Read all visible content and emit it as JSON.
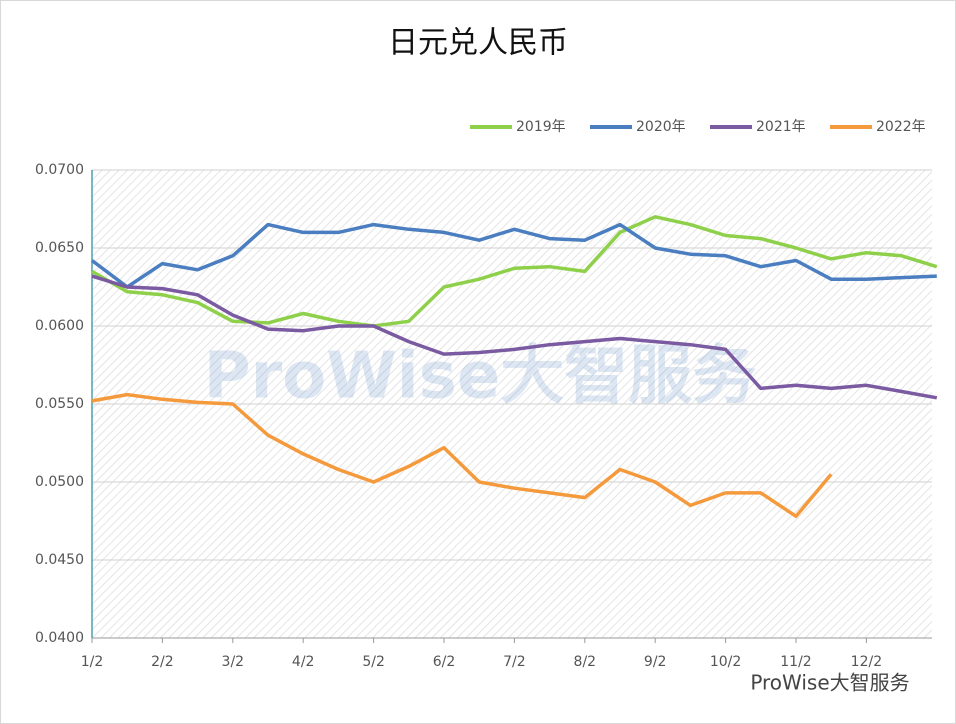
{
  "chart_data": {
    "type": "line",
    "title": "日元兑人民币",
    "watermark": "ProWise大智服务",
    "categories": [
      "1/2",
      null,
      "2/2",
      null,
      "3/2",
      null,
      "4/2",
      null,
      "5/2",
      null,
      "6/2",
      null,
      "7/2",
      null,
      "8/2",
      null,
      "9/2",
      null,
      "10/2",
      null,
      "11/2",
      null,
      "12/2",
      null,
      null
    ],
    "series": [
      {
        "name": "2019年",
        "color": "#8ed04a",
        "values": [
          0.0635,
          0.0622,
          0.062,
          0.0615,
          0.0603,
          0.0602,
          0.0608,
          0.0603,
          0.06,
          0.0603,
          0.0625,
          0.063,
          0.0637,
          0.0638,
          0.0635,
          0.066,
          0.067,
          0.0665,
          0.0658,
          0.0656,
          0.065,
          0.0643,
          0.0647,
          0.0645,
          0.0638
        ]
      },
      {
        "name": "2020年",
        "color": "#4a7ec0",
        "values": [
          0.0642,
          0.0625,
          0.064,
          0.0636,
          0.0645,
          0.0665,
          0.066,
          0.066,
          0.0665,
          0.0662,
          0.066,
          0.0655,
          0.0662,
          0.0656,
          0.0655,
          0.0665,
          0.065,
          0.0646,
          0.0645,
          0.0638,
          0.0642,
          0.063,
          0.063,
          0.0631,
          0.0632
        ]
      },
      {
        "name": "2021年",
        "color": "#7a5aa0",
        "values": [
          0.0632,
          0.0625,
          0.0624,
          0.062,
          0.0607,
          0.0598,
          0.0597,
          0.06,
          0.06,
          0.059,
          0.0582,
          0.0583,
          0.0585,
          0.0588,
          0.059,
          0.0592,
          0.059,
          0.0588,
          0.0585,
          0.056,
          0.0562,
          0.056,
          0.0562,
          0.0558,
          0.0554
        ]
      },
      {
        "name": "2022年",
        "color": "#f59a3c",
        "values": [
          0.0552,
          0.0556,
          0.0553,
          0.0551,
          0.055,
          0.053,
          0.0518,
          0.0508,
          0.05,
          0.051,
          0.0522,
          0.05,
          0.0496,
          0.0493,
          0.049,
          0.0508,
          0.05,
          0.0485,
          0.0493,
          0.0493,
          0.0478,
          0.0505,
          null,
          null,
          null
        ]
      }
    ],
    "ylim": [
      0.04,
      0.07
    ],
    "yticks": [
      {
        "value": 0.04,
        "label": "0.0400"
      },
      {
        "value": 0.045,
        "label": "0.0450"
      },
      {
        "value": 0.05,
        "label": "0.0500"
      },
      {
        "value": 0.055,
        "label": "0.0550"
      },
      {
        "value": 0.06,
        "label": "0.0600"
      },
      {
        "value": 0.065,
        "label": "0.0650"
      },
      {
        "value": 0.07,
        "label": "0.0700"
      }
    ],
    "grid": true,
    "legend": "top-right"
  }
}
